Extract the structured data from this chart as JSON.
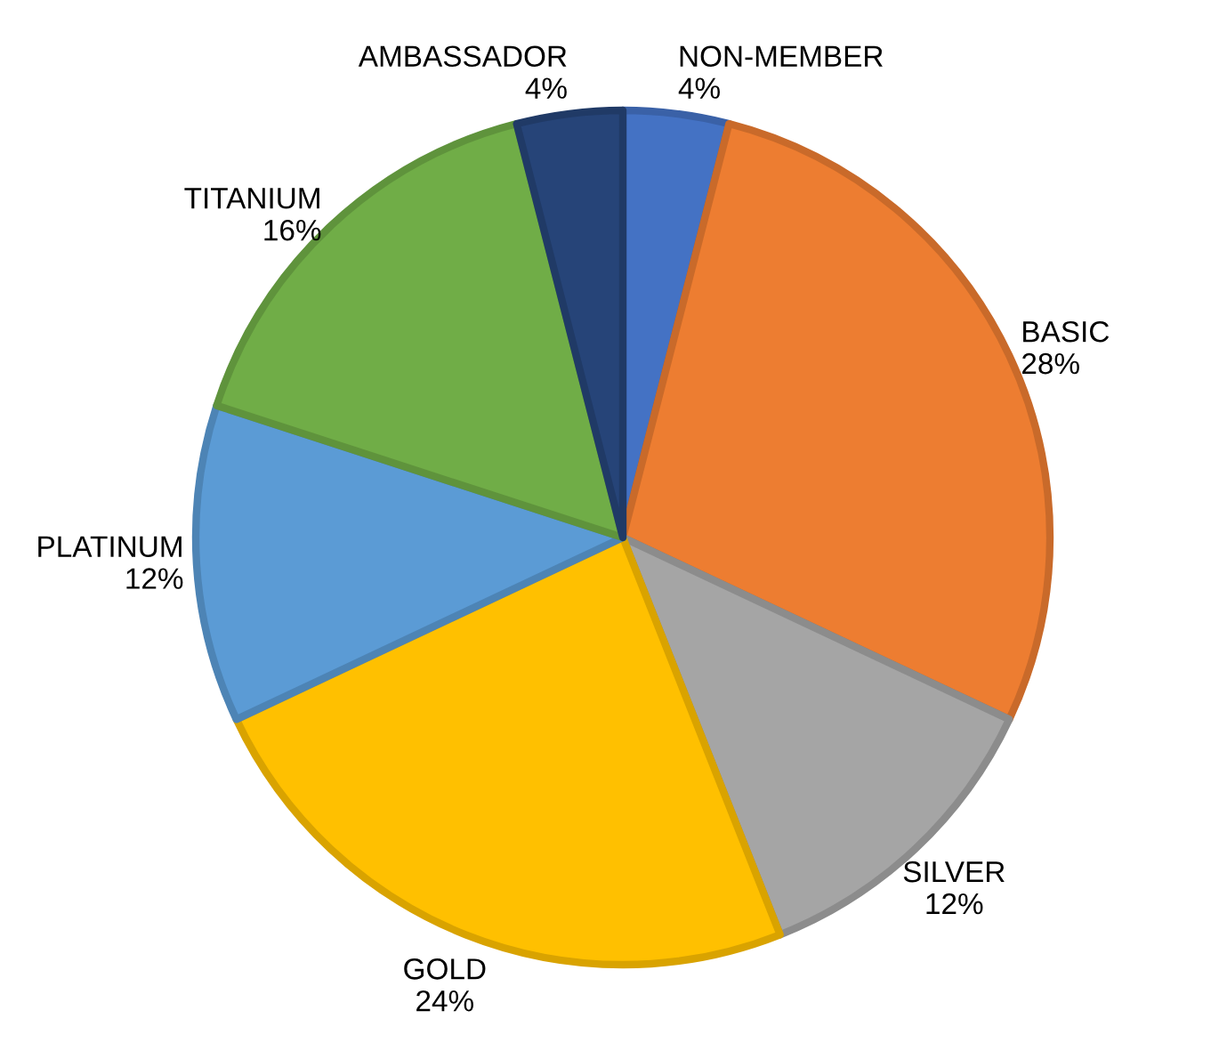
{
  "chart_data": {
    "type": "pie",
    "categories": [
      "NON-MEMBER",
      "BASIC",
      "SILVER",
      "GOLD",
      "PLATINUM",
      "TITANIUM",
      "AMBASSADOR"
    ],
    "values": [
      4,
      28,
      12,
      24,
      12,
      16,
      4
    ],
    "value_labels": [
      "4%",
      "28%",
      "12%",
      "24%",
      "12%",
      "16%",
      "4%"
    ],
    "colors": [
      "#4472c4",
      "#ed7d31",
      "#a5a5a5",
      "#ffc000",
      "#5b9bd5",
      "#70ad47",
      "#264478"
    ],
    "legend": false
  }
}
